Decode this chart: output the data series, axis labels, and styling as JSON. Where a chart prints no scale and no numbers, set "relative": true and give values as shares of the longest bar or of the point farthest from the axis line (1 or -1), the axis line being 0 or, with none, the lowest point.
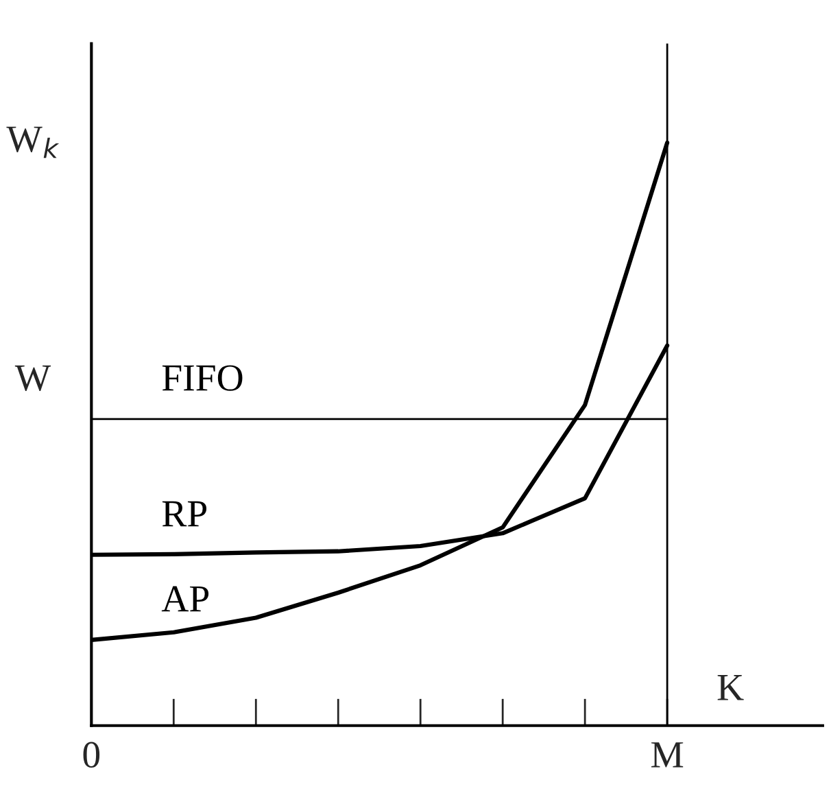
{
  "chart_data": {
    "type": "line",
    "relative": true,
    "xlabel": "K",
    "ylabel": "W$_{k}$",
    "categories": [
      "0",
      null,
      null,
      null,
      null,
      null,
      null,
      "M"
    ],
    "ref_lines": [
      {
        "axis": "x",
        "value": "M",
        "label": null,
        "color": "#000000"
      }
    ],
    "annotations": [
      "W"
    ],
    "series": [
      {
        "name": "FIFO",
        "color": "#000000",
        "values": [
          0.526,
          0.526,
          0.526,
          0.526,
          0.526,
          0.526,
          0.526,
          0.526
        ]
      },
      {
        "name": "RP",
        "color": "#000000",
        "values": [
          0.293,
          0.294,
          0.297,
          0.299,
          0.308,
          0.33,
          0.39,
          0.652
        ]
      },
      {
        "name": "AP",
        "color": "#000000",
        "values": [
          0.147,
          0.16,
          0.185,
          0.228,
          0.275,
          0.34,
          0.55,
          1
        ]
      }
    ]
  }
}
